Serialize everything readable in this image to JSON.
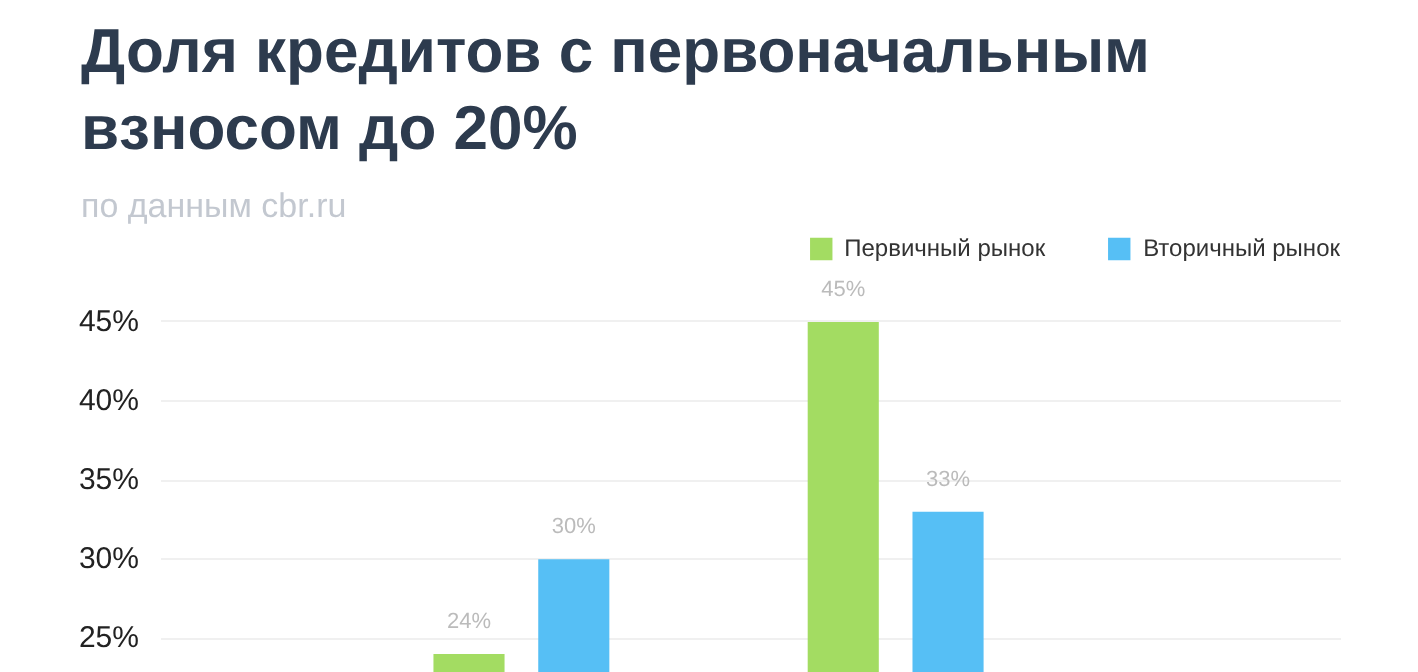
{
  "chart_data": {
    "type": "bar",
    "title": "Доля кредитов с первоначальным взносом до 20%",
    "subtitle": "по данным cbr.ru",
    "categories": [
      null,
      null
    ],
    "series": [
      {
        "name": "Первичный рынок",
        "color": "#a3dc62",
        "values": [
          24,
          45
        ]
      },
      {
        "name": "Вторичный рынок",
        "color": "#56bff5",
        "values": [
          30,
          33
        ]
      }
    ],
    "ylim": [
      22.8,
      50.5
    ],
    "yticks": [
      {
        "value": 25,
        "label": "25%"
      },
      {
        "value": 30,
        "label": "30%"
      },
      {
        "value": 35,
        "label": "35%"
      },
      {
        "value": 40,
        "label": "40%"
      },
      {
        "value": 45,
        "label": "45%"
      }
    ],
    "value_labels": [
      [
        "24%",
        "45%"
      ],
      [
        "30%",
        "33%"
      ]
    ],
    "grid": "y",
    "legend": "top right",
    "tick_labels": "y"
  }
}
